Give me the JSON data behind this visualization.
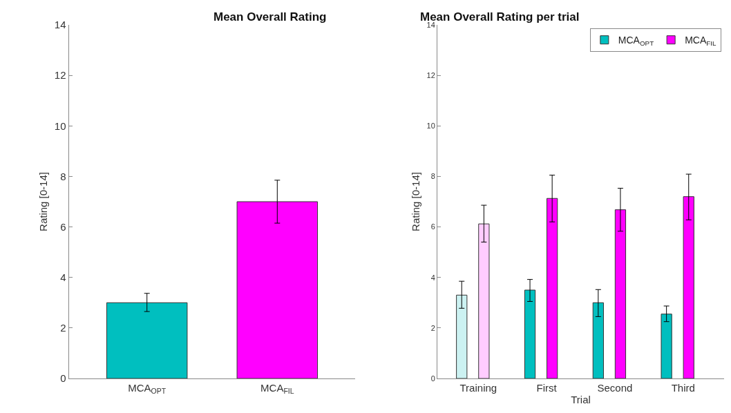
{
  "chart_data": [
    {
      "type": "bar",
      "title": "Mean Overall Rating",
      "ylabel": "Rating [0-14]",
      "categories": [
        "MCA$_{OPT}$",
        "MCA$_{FIL}$"
      ],
      "values": [
        3.0,
        7.0
      ],
      "colors": [
        "#00bfbf",
        "#ff00ff"
      ],
      "errors": [
        [
          2.65,
          3.37
        ],
        [
          6.15,
          7.85
        ]
      ],
      "ylim": [
        0,
        14
      ],
      "yticks": [
        0,
        2,
        4,
        6,
        8,
        10,
        12,
        14
      ]
    },
    {
      "type": "bar",
      "title": "Mean Overall Rating per trial",
      "xlabel": "Trial",
      "ylabel": "Rating [0-14]",
      "categories": [
        "Training",
        "First",
        "Second",
        "Third"
      ],
      "legend": "top right",
      "ylim": [
        0,
        14
      ],
      "yticks": [
        0,
        2,
        4,
        6,
        8,
        10,
        12,
        14
      ],
      "series": [
        {
          "name": "MCA$_{OPT}$",
          "color": "#00bfbf",
          "colors": [
            "#ccf2f2",
            "#00bfbf",
            "#00bfbf",
            "#00bfbf"
          ],
          "values": [
            3.3,
            3.5,
            3.0,
            2.55
          ],
          "errors": [
            [
              2.78,
              3.85
            ],
            [
              3.05,
              3.92
            ],
            [
              2.45,
              3.52
            ],
            [
              2.25,
              2.87
            ]
          ]
        },
        {
          "name": "MCA$_{FIL}$",
          "color": "#ff00ff",
          "colors": [
            "#ffccff",
            "#ff00ff",
            "#ff00ff",
            "#ff00ff"
          ],
          "values": [
            6.12,
            7.13,
            6.68,
            7.2
          ],
          "errors": [
            [
              5.4,
              6.86
            ],
            [
              6.2,
              8.05
            ],
            [
              5.83,
              7.53
            ],
            [
              6.28,
              8.09
            ]
          ]
        }
      ]
    }
  ]
}
